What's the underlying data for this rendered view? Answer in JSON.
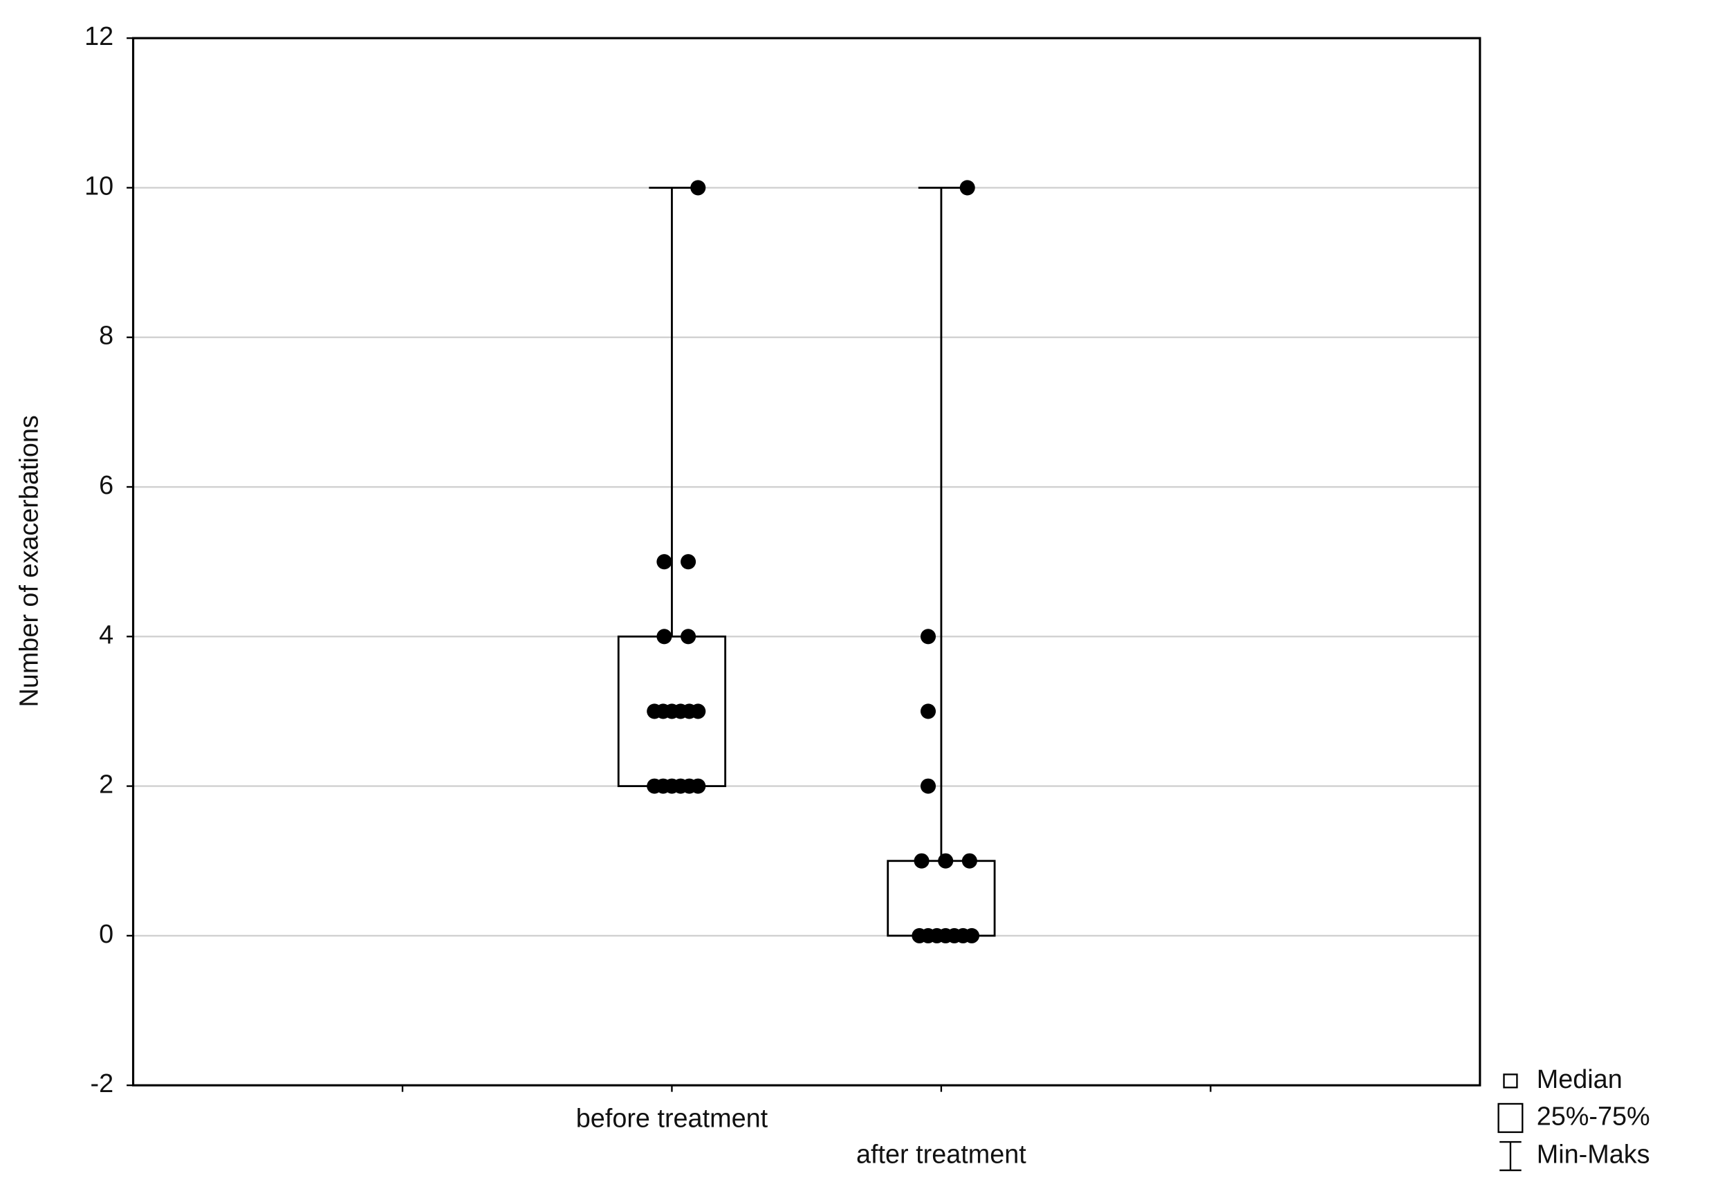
{
  "chart_data": {
    "type": "box",
    "y_label": "Number of exacerbations",
    "categories": [
      "before treatment",
      "after treatment"
    ],
    "boxes": [
      {
        "min": 2,
        "q1": 2,
        "median": 3,
        "q3": 4,
        "max": 10,
        "points": [
          10,
          5,
          5,
          4,
          4,
          3,
          3,
          3,
          3,
          3,
          3,
          2,
          2,
          2,
          2,
          2,
          2
        ]
      },
      {
        "min": 0,
        "q1": 0,
        "median": 0,
        "q3": 1,
        "max": 10,
        "points": [
          10,
          4,
          3,
          2,
          1,
          1,
          1,
          0,
          0,
          0,
          0,
          0,
          0,
          0
        ]
      }
    ],
    "ylim": [
      -2,
      12
    ],
    "yticks": [
      -2,
      0,
      2,
      4,
      6,
      8,
      10,
      12
    ],
    "grid": true,
    "legend": [
      "Median",
      "25%-75%",
      "Min-Maks"
    ]
  }
}
